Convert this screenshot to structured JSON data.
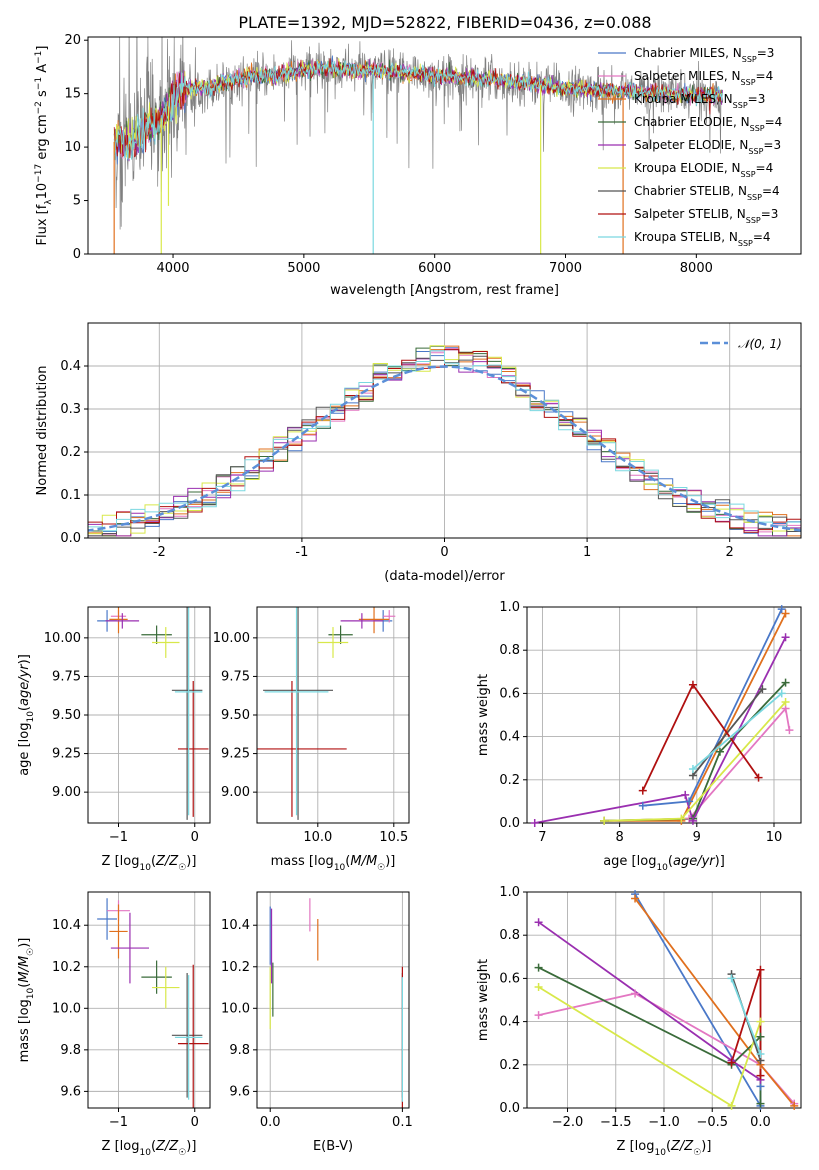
{
  "figure_title": "PLATE=1392, MJD=52822, FIBERID=0436, z=0.088",
  "legend_series": [
    {
      "label": "Chabrier MILES, N",
      "sub": "SSP",
      "suffix": "=3",
      "color": "#4a78c8"
    },
    {
      "label": "Salpeter MILES, N",
      "sub": "SSP",
      "suffix": "=4",
      "color": "#e377c2"
    },
    {
      "label": "Kroupa MILES, N",
      "sub": "SSP",
      "suffix": "=3",
      "color": "#e0701e"
    },
    {
      "label": "Chabrier ELODIE, N",
      "sub": "SSP",
      "suffix": "=4",
      "color": "#3a6b3a"
    },
    {
      "label": "Salpeter ELODIE, N",
      "sub": "SSP",
      "suffix": "=3",
      "color": "#9a2fb0"
    },
    {
      "label": "Kroupa ELODIE, N",
      "sub": "SSP",
      "suffix": "=4",
      "color": "#d8e84a"
    },
    {
      "label": "Chabrier STELIB, N",
      "sub": "SSP",
      "suffix": "=4",
      "color": "#555555"
    },
    {
      "label": "Salpeter STELIB, N",
      "sub": "SSP",
      "suffix": "=3",
      "color": "#b01010"
    },
    {
      "label": "Kroupa STELIB, N",
      "sub": "SSP",
      "suffix": "=4",
      "color": "#7ad8e0"
    }
  ],
  "chart_data": [
    {
      "id": "spectrum",
      "type": "line",
      "xlabel": "wavelength [Angstrom, rest frame]",
      "ylabel": "Flux [f_λ 10^-17 erg cm^-2 s^-1 A^-1]",
      "xlim": [
        3350,
        8800
      ],
      "ylim": [
        0,
        20.3
      ],
      "xticks": [
        4000,
        5000,
        6000,
        7000,
        8000
      ],
      "yticks": [
        0,
        5,
        10,
        15,
        20
      ],
      "continuum": [
        [
          3550,
          10.5
        ],
        [
          3700,
          10.3
        ],
        [
          3800,
          12.0
        ],
        [
          3900,
          12.5
        ],
        [
          4000,
          14.5
        ],
        [
          4100,
          15.5
        ],
        [
          4300,
          15.6
        ],
        [
          4500,
          16.4
        ],
        [
          4800,
          16.8
        ],
        [
          5100,
          17.4
        ],
        [
          5500,
          17.2
        ],
        [
          6000,
          16.7
        ],
        [
          6500,
          16.3
        ],
        [
          7000,
          15.5
        ],
        [
          7500,
          15.2
        ],
        [
          8000,
          14.8
        ],
        [
          8200,
          14.8
        ]
      ],
      "dips": [
        [
          3550,
          0
        ],
        [
          3910,
          0
        ],
        [
          3965,
          4.5
        ],
        [
          5530,
          0
        ],
        [
          6810,
          0
        ],
        [
          7440,
          0
        ]
      ]
    },
    {
      "id": "residuals",
      "type": "line",
      "xlabel": "(data-model)/error",
      "ylabel": "Normed distribution",
      "xlim": [
        -2.5,
        2.5
      ],
      "ylim": [
        0,
        0.5
      ],
      "xticks": [
        -2,
        -1,
        0,
        1,
        2
      ],
      "yticks": [
        0.0,
        0.1,
        0.2,
        0.3,
        0.4
      ],
      "legend": "𝒩(0, 1)",
      "gaussian": {
        "mean": 0,
        "sigma": 1,
        "color": "#5b8fd8"
      },
      "bin_width": 0.1
    },
    {
      "id": "age-vs-Z",
      "type": "scatter",
      "xlabel": "Z [log10(Z/Z☉)]",
      "ylabel": "age [log10(age/yr)]",
      "xlim": [
        -1.4,
        0.2
      ],
      "ylim": [
        8.8,
        10.2
      ],
      "xticks": [
        -1,
        0
      ],
      "yticks": [
        9.0,
        9.25,
        9.5,
        9.75,
        10.0
      ],
      "points": [
        {
          "x": -1.15,
          "y": 10.11,
          "xerr": 0.13,
          "yerr": 0.07,
          "color": "#4a78c8"
        },
        {
          "x": -1.0,
          "y": 10.14,
          "xerr": 0.1,
          "yerr": 0.04,
          "color": "#e377c2"
        },
        {
          "x": -1.0,
          "y": 10.12,
          "xerr": 0.12,
          "yerr": 0.09,
          "color": "#e0701e"
        },
        {
          "x": -0.5,
          "y": 10.02,
          "xerr": 0.2,
          "yerr": 0.06,
          "color": "#3a6b3a"
        },
        {
          "x": -0.95,
          "y": 10.11,
          "xerr": 0.22,
          "yerr": 0.05,
          "color": "#9a2fb0"
        },
        {
          "x": -0.38,
          "y": 9.97,
          "xerr": 0.18,
          "yerr": 0.1,
          "color": "#d8e84a"
        },
        {
          "x": -0.1,
          "y": 9.66,
          "xerr": 0.2,
          "yerr": 0.84,
          "color": "#555555"
        },
        {
          "x": -0.02,
          "y": 9.28,
          "xerr": 0.2,
          "yerr": 0.44,
          "color": "#b01010"
        },
        {
          "x": -0.08,
          "y": 9.65,
          "xerr": 0.18,
          "yerr": 0.8,
          "color": "#7ad8e0"
        }
      ]
    },
    {
      "id": "age-vs-mass",
      "type": "scatter",
      "xlabel": "mass [log10(M/M☉)]",
      "ylabel": "",
      "xlim": [
        9.6,
        10.6
      ],
      "ylim": [
        8.8,
        10.2
      ],
      "xticks": [
        10.0,
        10.5
      ],
      "yticks": [
        9.0,
        9.25,
        9.5,
        9.75,
        10.0
      ],
      "points": [
        {
          "x": 10.43,
          "y": 10.11,
          "xerr": 0.06,
          "yerr": 0.07,
          "color": "#4a78c8"
        },
        {
          "x": 10.47,
          "y": 10.14,
          "xerr": 0.04,
          "yerr": 0.04,
          "color": "#e377c2"
        },
        {
          "x": 10.37,
          "y": 10.12,
          "xerr": 0.1,
          "yerr": 0.09,
          "color": "#e0701e"
        },
        {
          "x": 10.15,
          "y": 10.02,
          "xerr": 0.08,
          "yerr": 0.06,
          "color": "#3a6b3a"
        },
        {
          "x": 10.29,
          "y": 10.11,
          "xerr": 0.14,
          "yerr": 0.05,
          "color": "#9a2fb0"
        },
        {
          "x": 10.1,
          "y": 9.97,
          "xerr": 0.1,
          "yerr": 0.1,
          "color": "#d8e84a"
        },
        {
          "x": 9.87,
          "y": 9.66,
          "xerr": 0.23,
          "yerr": 0.84,
          "color": "#555555"
        },
        {
          "x": 9.83,
          "y": 9.28,
          "xerr": 0.36,
          "yerr": 0.44,
          "color": "#b01010"
        },
        {
          "x": 9.86,
          "y": 9.65,
          "xerr": 0.21,
          "yerr": 0.8,
          "color": "#7ad8e0"
        }
      ]
    },
    {
      "id": "weight-vs-age",
      "type": "line",
      "xlabel": "age [log10(age/yr)]",
      "ylabel": "mass weight",
      "xlim": [
        6.8,
        10.35
      ],
      "ylim": [
        0,
        1.0
      ],
      "xticks": [
        7,
        8,
        9,
        10
      ],
      "yticks": [
        0.0,
        0.2,
        0.4,
        0.6,
        0.8,
        1.0
      ],
      "series": [
        {
          "color": "#4a78c8",
          "x": [
            8.3,
            8.9,
            10.1
          ],
          "y": [
            0.08,
            0.1,
            0.99
          ]
        },
        {
          "color": "#e377c2",
          "x": [
            7.8,
            8.9,
            10.15,
            10.2
          ],
          "y": [
            0.01,
            0.02,
            0.53,
            0.43
          ]
        },
        {
          "color": "#e0701e",
          "x": [
            7.8,
            8.8,
            10.15
          ],
          "y": [
            0.01,
            0.01,
            0.97
          ]
        },
        {
          "color": "#3a6b3a",
          "x": [
            7.8,
            8.95,
            9.3,
            10.15
          ],
          "y": [
            0.01,
            0.02,
            0.33,
            0.65
          ]
        },
        {
          "color": "#9a2fb0",
          "x": [
            6.9,
            8.85,
            8.95,
            10.15
          ],
          "y": [
            0.0,
            0.13,
            0.01,
            0.86
          ]
        },
        {
          "color": "#d8e84a",
          "x": [
            7.8,
            8.8,
            10.15
          ],
          "y": [
            0.01,
            0.02,
            0.56
          ]
        },
        {
          "color": "#555555",
          "x": [
            8.95,
            9.85
          ],
          "y": [
            0.22,
            0.62
          ]
        },
        {
          "color": "#b01010",
          "x": [
            8.3,
            8.95,
            9.8
          ],
          "y": [
            0.15,
            0.64,
            0.21
          ]
        },
        {
          "color": "#7ad8e0",
          "x": [
            8.95,
            10.1
          ],
          "y": [
            0.25,
            0.6
          ]
        }
      ]
    },
    {
      "id": "mass-vs-Z",
      "type": "scatter",
      "xlabel": "Z [log10(Z/Z☉)]",
      "ylabel": "mass [log10(M/M☉)]",
      "xlim": [
        -1.4,
        0.2
      ],
      "ylim": [
        9.52,
        10.56
      ],
      "xticks": [
        -1,
        0
      ],
      "yticks": [
        9.6,
        9.8,
        10.0,
        10.2,
        10.4
      ],
      "points": [
        {
          "x": -1.15,
          "y": 10.43,
          "xerr": 0.13,
          "yerr": 0.1,
          "color": "#4a78c8"
        },
        {
          "x": -1.0,
          "y": 10.47,
          "xerr": 0.15,
          "yerr": 0.05,
          "color": "#e377c2"
        },
        {
          "x": -1.0,
          "y": 10.37,
          "xerr": 0.12,
          "yerr": 0.13,
          "color": "#e0701e"
        },
        {
          "x": -0.5,
          "y": 10.15,
          "xerr": 0.2,
          "yerr": 0.08,
          "color": "#3a6b3a"
        },
        {
          "x": -0.85,
          "y": 10.29,
          "xerr": 0.25,
          "yerr": 0.17,
          "color": "#9a2fb0"
        },
        {
          "x": -0.38,
          "y": 10.1,
          "xerr": 0.18,
          "yerr": 0.1,
          "color": "#d8e84a"
        },
        {
          "x": -0.1,
          "y": 9.87,
          "xerr": 0.2,
          "yerr": 0.3,
          "color": "#555555"
        },
        {
          "x": -0.02,
          "y": 9.83,
          "xerr": 0.2,
          "yerr": 0.38,
          "color": "#b01010"
        },
        {
          "x": -0.08,
          "y": 9.86,
          "xerr": 0.18,
          "yerr": 0.3,
          "color": "#7ad8e0"
        }
      ]
    },
    {
      "id": "mass-vs-EBV",
      "type": "scatter",
      "xlabel": "E(B-V)",
      "ylabel": "",
      "xlim": [
        -0.01,
        0.105
      ],
      "ylim": [
        9.52,
        10.56
      ],
      "xticks": [
        0.0,
        0.1
      ],
      "yticks": [
        9.6,
        9.8,
        10.0,
        10.2,
        10.4
      ],
      "points": [
        {
          "x": 0.0,
          "y": 10.35,
          "xerr": 0,
          "yerr": 0.14,
          "color": "#4a78c8"
        },
        {
          "x": 0.03,
          "y": 10.45,
          "xerr": 0,
          "yerr": 0.08,
          "color": "#e377c2"
        },
        {
          "x": 0.036,
          "y": 10.33,
          "xerr": 0,
          "yerr": 0.1,
          "color": "#e0701e"
        },
        {
          "x": 0.002,
          "y": 10.09,
          "xerr": 0,
          "yerr": 0.13,
          "color": "#3a6b3a"
        },
        {
          "x": 0.001,
          "y": 10.3,
          "xerr": 0,
          "yerr": 0.18,
          "color": "#9a2fb0"
        },
        {
          "x": 0.0,
          "y": 10.05,
          "xerr": 0,
          "yerr": 0.15,
          "color": "#d8e84a"
        },
        {
          "x": 0.1,
          "y": 9.87,
          "xerr": 0,
          "yerr": 0.3,
          "color": "#555555"
        },
        {
          "x": 0.1,
          "y": 9.85,
          "xerr": 0,
          "yerr": 0.35,
          "color": "#b01010"
        },
        {
          "x": 0.1,
          "y": 9.85,
          "xerr": 0,
          "yerr": 0.3,
          "color": "#7ad8e0"
        }
      ]
    },
    {
      "id": "weight-vs-Z",
      "type": "line",
      "xlabel": "Z [log10(Z/Z☉)]",
      "ylabel": "mass weight",
      "xlim": [
        -2.42,
        0.42
      ],
      "ylim": [
        0,
        1.0
      ],
      "xticks": [
        -2.0,
        -1.5,
        -1.0,
        -0.5,
        0.0
      ],
      "yticks": [
        0.0,
        0.2,
        0.4,
        0.6,
        0.8,
        1.0
      ],
      "series": [
        {
          "color": "#4a78c8",
          "x": [
            -1.3,
            0.0,
            0.0
          ],
          "y": [
            0.99,
            0.01,
            0.1
          ]
        },
        {
          "color": "#e377c2",
          "x": [
            -2.3,
            -1.3,
            0.0,
            0.35
          ],
          "y": [
            0.43,
            0.53,
            0.2,
            0.02
          ]
        },
        {
          "color": "#e0701e",
          "x": [
            -1.3,
            0.0,
            0.35
          ],
          "y": [
            0.97,
            0.2,
            0.01
          ]
        },
        {
          "color": "#3a6b3a",
          "x": [
            -2.3,
            -0.3,
            -0.0,
            0.0
          ],
          "y": [
            0.65,
            0.2,
            0.33,
            0.02
          ]
        },
        {
          "color": "#9a2fb0",
          "x": [
            -2.3,
            -0.3,
            0.0
          ],
          "y": [
            0.86,
            0.22,
            0.13
          ]
        },
        {
          "color": "#d8e84a",
          "x": [
            -2.3,
            -0.3,
            0.0
          ],
          "y": [
            0.56,
            0.01,
            0.4
          ]
        },
        {
          "color": "#555555",
          "x": [
            -0.3,
            0.0
          ],
          "y": [
            0.62,
            0.22
          ]
        },
        {
          "color": "#b01010",
          "x": [
            -0.3,
            0.0,
            0.0
          ],
          "y": [
            0.21,
            0.64,
            0.15
          ]
        },
        {
          "color": "#7ad8e0",
          "x": [
            -0.3,
            0.0
          ],
          "y": [
            0.6,
            0.25
          ]
        }
      ]
    }
  ]
}
